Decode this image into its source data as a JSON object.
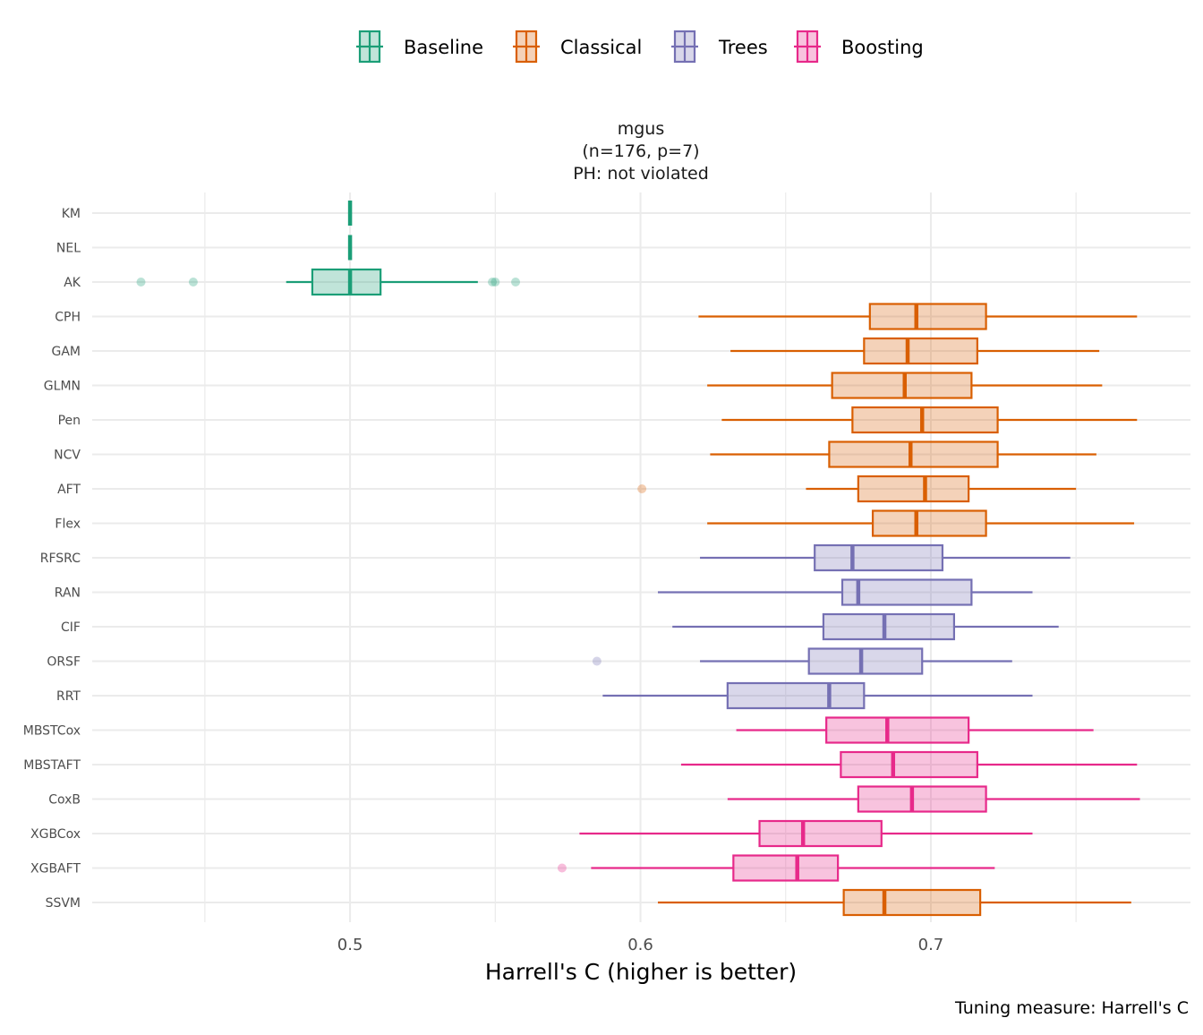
{
  "chart_data": {
    "type": "boxplot",
    "facet_title": [
      "mgus",
      "(n=176, p=7)",
      "PH: not violated"
    ],
    "xlabel": "Harrell's C (higher is better)",
    "ylabel": "",
    "caption": "Tuning measure: Harrell's C",
    "xlim": [
      0.4112,
      0.7894
    ],
    "x_ticks": [
      0.5,
      0.6,
      0.7
    ],
    "x_tick_labels": [
      "0.5",
      "0.6",
      "0.7"
    ],
    "x_minor_grid": [
      0.45,
      0.55,
      0.65,
      0.75
    ],
    "grid": true,
    "legend_position": "top",
    "legend": [
      {
        "name": "Baseline",
        "color": "#1B9E77"
      },
      {
        "name": "Classical",
        "color": "#D95F02"
      },
      {
        "name": "Trees",
        "color": "#7570B3"
      },
      {
        "name": "Boosting",
        "color": "#E7298A"
      }
    ],
    "categories": [
      "KM",
      "NEL",
      "AK",
      "CPH",
      "GAM",
      "GLMN",
      "Pen",
      "NCV",
      "AFT",
      "Flex",
      "RFSRC",
      "RAN",
      "CIF",
      "ORSF",
      "RRT",
      "MBSTCox",
      "MBSTAFT",
      "CoxB",
      "XGBCox",
      "XGBAFT",
      "SSVM"
    ],
    "boxes": [
      {
        "label": "KM",
        "group": "Baseline",
        "whisker_low": 0.5,
        "q1": 0.5,
        "median": 0.5,
        "q3": 0.5,
        "whisker_high": 0.5,
        "outliers": []
      },
      {
        "label": "NEL",
        "group": "Baseline",
        "whisker_low": 0.5,
        "q1": 0.5,
        "median": 0.5,
        "q3": 0.5,
        "whisker_high": 0.5,
        "outliers": []
      },
      {
        "label": "AK",
        "group": "Baseline",
        "whisker_low": 0.478,
        "q1": 0.487,
        "median": 0.5,
        "q3": 0.5105,
        "whisker_high": 0.544,
        "outliers": [
          0.428,
          0.446,
          0.549,
          0.55,
          0.557
        ]
      },
      {
        "label": "CPH",
        "group": "Classical",
        "whisker_low": 0.62,
        "q1": 0.679,
        "median": 0.695,
        "q3": 0.719,
        "whisker_high": 0.771,
        "outliers": []
      },
      {
        "label": "GAM",
        "group": "Classical",
        "whisker_low": 0.631,
        "q1": 0.677,
        "median": 0.692,
        "q3": 0.716,
        "whisker_high": 0.758,
        "outliers": []
      },
      {
        "label": "GLMN",
        "group": "Classical",
        "whisker_low": 0.623,
        "q1": 0.666,
        "median": 0.691,
        "q3": 0.714,
        "whisker_high": 0.759,
        "outliers": []
      },
      {
        "label": "Pen",
        "group": "Classical",
        "whisker_low": 0.628,
        "q1": 0.673,
        "median": 0.697,
        "q3": 0.723,
        "whisker_high": 0.771,
        "outliers": []
      },
      {
        "label": "NCV",
        "group": "Classical",
        "whisker_low": 0.624,
        "q1": 0.665,
        "median": 0.693,
        "q3": 0.723,
        "whisker_high": 0.757,
        "outliers": []
      },
      {
        "label": "AFT",
        "group": "Classical",
        "whisker_low": 0.657,
        "q1": 0.675,
        "median": 0.698,
        "q3": 0.713,
        "whisker_high": 0.75,
        "outliers": [
          0.6005
        ]
      },
      {
        "label": "Flex",
        "group": "Classical",
        "whisker_low": 0.623,
        "q1": 0.68,
        "median": 0.695,
        "q3": 0.719,
        "whisker_high": 0.77,
        "outliers": []
      },
      {
        "label": "RFSRC",
        "group": "Trees",
        "whisker_low": 0.6205,
        "q1": 0.66,
        "median": 0.673,
        "q3": 0.704,
        "whisker_high": 0.748,
        "outliers": []
      },
      {
        "label": "RAN",
        "group": "Trees",
        "whisker_low": 0.606,
        "q1": 0.6695,
        "median": 0.675,
        "q3": 0.714,
        "whisker_high": 0.735,
        "outliers": []
      },
      {
        "label": "CIF",
        "group": "Trees",
        "whisker_low": 0.611,
        "q1": 0.663,
        "median": 0.684,
        "q3": 0.708,
        "whisker_high": 0.744,
        "outliers": []
      },
      {
        "label": "ORSF",
        "group": "Trees",
        "whisker_low": 0.6205,
        "q1": 0.658,
        "median": 0.676,
        "q3": 0.697,
        "whisker_high": 0.728,
        "outliers": [
          0.585
        ]
      },
      {
        "label": "RRT",
        "group": "Trees",
        "whisker_low": 0.587,
        "q1": 0.63,
        "median": 0.665,
        "q3": 0.677,
        "whisker_high": 0.735,
        "outliers": []
      },
      {
        "label": "MBSTCox",
        "group": "Boosting",
        "whisker_low": 0.633,
        "q1": 0.664,
        "median": 0.685,
        "q3": 0.713,
        "whisker_high": 0.756,
        "outliers": []
      },
      {
        "label": "MBSTAFT",
        "group": "Boosting",
        "whisker_low": 0.614,
        "q1": 0.669,
        "median": 0.687,
        "q3": 0.716,
        "whisker_high": 0.771,
        "outliers": []
      },
      {
        "label": "CoxB",
        "group": "Boosting",
        "whisker_low": 0.63,
        "q1": 0.675,
        "median": 0.6935,
        "q3": 0.719,
        "whisker_high": 0.772,
        "outliers": []
      },
      {
        "label": "XGBCox",
        "group": "Boosting",
        "whisker_low": 0.579,
        "q1": 0.641,
        "median": 0.656,
        "q3": 0.683,
        "whisker_high": 0.735,
        "outliers": []
      },
      {
        "label": "XGBAFT",
        "group": "Boosting",
        "whisker_low": 0.583,
        "q1": 0.632,
        "median": 0.654,
        "q3": 0.668,
        "whisker_high": 0.722,
        "outliers": [
          0.573
        ]
      },
      {
        "label": "SSVM",
        "group": "Classical",
        "whisker_low": 0.606,
        "q1": 0.67,
        "median": 0.684,
        "q3": 0.717,
        "whisker_high": 0.769,
        "outliers": []
      }
    ]
  }
}
